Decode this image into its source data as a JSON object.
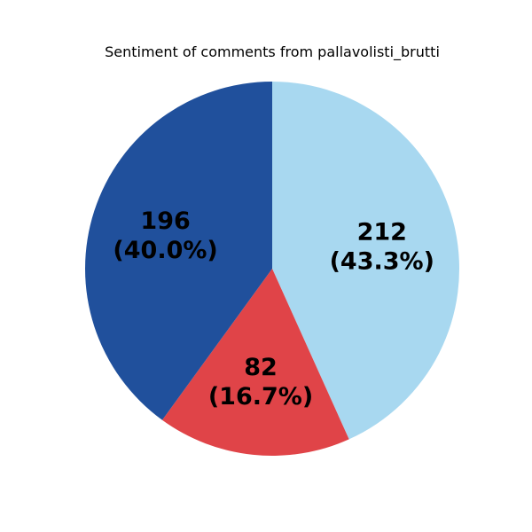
{
  "chart_data": {
    "type": "pie",
    "title": "Sentiment of comments from pallavolisti_brutti",
    "slices": [
      {
        "value": 212,
        "percent_label": "(43.3%)",
        "color": "#a8d8f0"
      },
      {
        "value": 82,
        "percent_label": "(16.7%)",
        "color": "#e04448"
      },
      {
        "value": 196,
        "percent_label": "(40.0%)",
        "color": "#20509c"
      }
    ],
    "start_angle": "top",
    "direction": "clockwise",
    "legend": "none"
  }
}
